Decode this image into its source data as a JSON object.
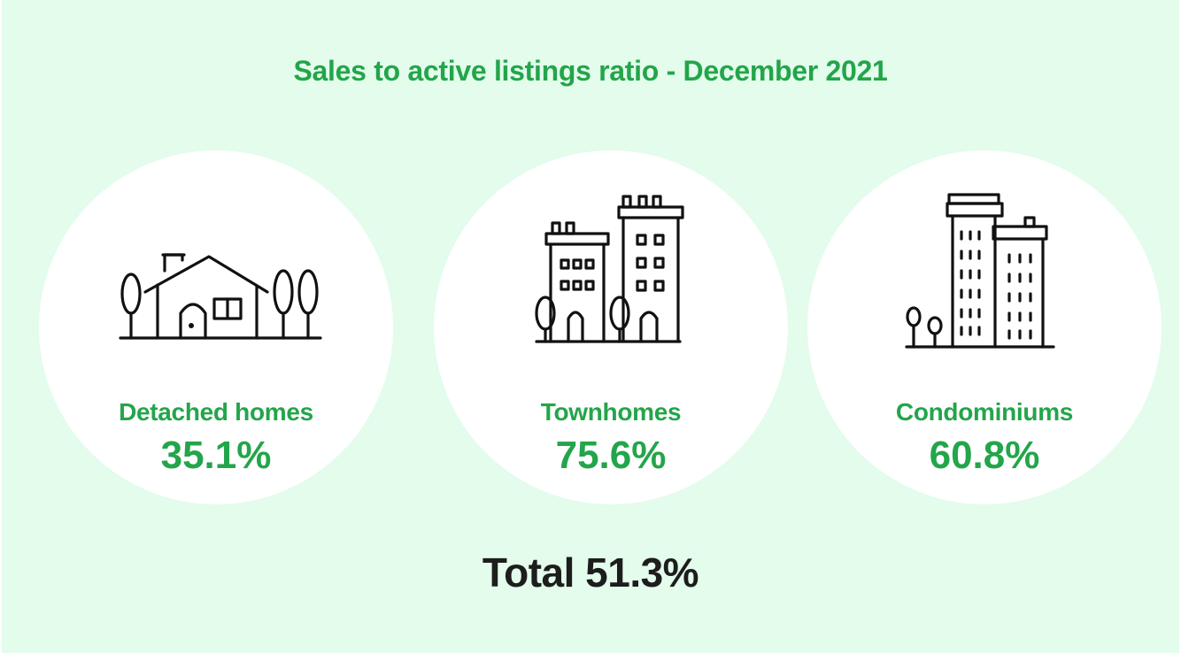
{
  "title": "Sales to active listings ratio - December 2021",
  "categories": [
    {
      "label": "Detached homes",
      "value": "35.1%",
      "icon": "house-icon"
    },
    {
      "label": "Townhomes",
      "value": "75.6%",
      "icon": "townhouse-icon"
    },
    {
      "label": "Condominiums",
      "value": "60.8%",
      "icon": "condo-icon"
    }
  ],
  "total": "Total 51.3%",
  "colors": {
    "background": "#e3fcec",
    "accent": "#23a54a",
    "circle": "#ffffff",
    "total_text": "#1d1d1d"
  }
}
